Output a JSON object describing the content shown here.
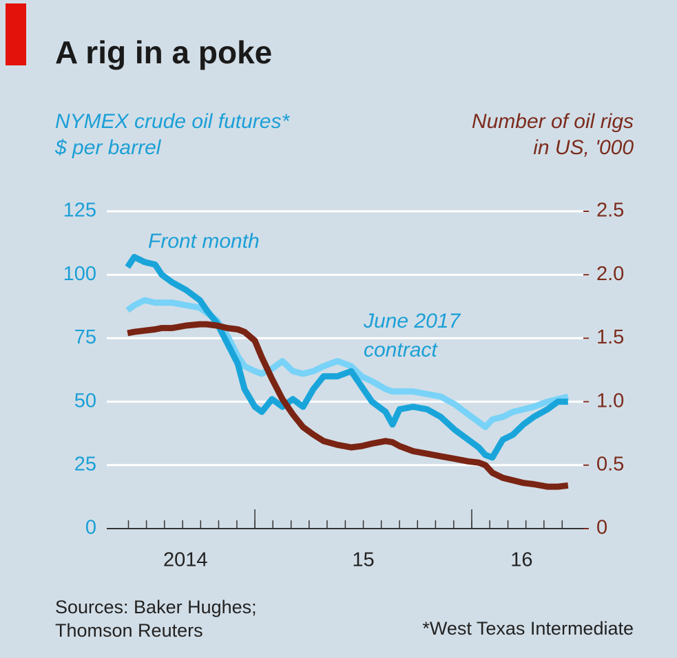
{
  "chart_data": {
    "type": "line",
    "title": "A rig in a poke",
    "y_axis_label": [
      "NYMEX crude oil futures*",
      "$ per barrel"
    ],
    "y2_axis_label": [
      "Number of oil rigs",
      "in US, '000"
    ],
    "annotations": [
      "Front month",
      "June 2017",
      "contract"
    ],
    "sources": [
      "Sources: Baker Hughes;",
      "Thomson Reuters"
    ],
    "footnote": "*West Texas Intermediate",
    "x": [
      2014.413,
      2014.444,
      2014.492,
      2014.54,
      2014.571,
      2014.619,
      2014.683,
      2014.746,
      2014.778,
      2014.825,
      2014.873,
      2014.921,
      2014.952,
      2015.0,
      2015.032,
      2015.079,
      2015.127,
      2015.175,
      2015.222,
      2015.27,
      2015.317,
      2015.381,
      2015.444,
      2015.492,
      2015.54,
      2015.603,
      2015.635,
      2015.667,
      2015.73,
      2015.794,
      2015.857,
      2015.921,
      2015.984,
      2016.032,
      2016.063,
      2016.095,
      2016.143,
      2016.19,
      2016.238,
      2016.286,
      2016.349,
      2016.397,
      2016.444
    ],
    "series": [
      {
        "name": "June 2017 contract",
        "color": "#79d2f7",
        "axis": "y",
        "values": [
          86,
          88,
          90,
          89,
          89,
          89,
          88,
          87,
          85,
          82,
          76,
          68,
          64,
          62,
          61,
          63,
          66,
          62,
          61,
          62,
          64,
          66,
          64,
          60,
          58,
          55,
          54,
          54,
          54,
          53,
          52,
          49,
          45,
          42,
          40,
          43,
          44,
          46,
          47,
          48,
          50,
          51,
          52
        ]
      },
      {
        "name": "Front month",
        "color": "#1aa5da",
        "axis": "y",
        "values": [
          103,
          107,
          105,
          104,
          100,
          97,
          94,
          90,
          86,
          81,
          73,
          65,
          55,
          48,
          46,
          51,
          48,
          51,
          48,
          55,
          60,
          60,
          62,
          56,
          50,
          46,
          41,
          47,
          48,
          47,
          44,
          39,
          35,
          32,
          29,
          28,
          35,
          37,
          41,
          44,
          47,
          50,
          50
        ]
      },
      {
        "name": "Number of oil rigs",
        "color": "#7a2414",
        "axis": "y2",
        "values": [
          1.54,
          1.55,
          1.56,
          1.57,
          1.58,
          1.58,
          1.6,
          1.61,
          1.61,
          1.6,
          1.58,
          1.57,
          1.55,
          1.48,
          1.35,
          1.18,
          1.02,
          0.9,
          0.8,
          0.74,
          0.69,
          0.66,
          0.64,
          0.65,
          0.67,
          0.69,
          0.68,
          0.65,
          0.61,
          0.59,
          0.57,
          0.55,
          0.53,
          0.52,
          0.5,
          0.44,
          0.4,
          0.38,
          0.36,
          0.35,
          0.33,
          0.33,
          0.34
        ]
      }
    ],
    "xlim": [
      2014.317,
      2016.54
    ],
    "xticks": [
      2014.417,
      2014.5,
      2014.583,
      2014.667,
      2014.75,
      2014.833,
      2014.917,
      2015,
      2015.083,
      2015.167,
      2015.25,
      2015.333,
      2015.417,
      2015.5,
      2015.583,
      2015.667,
      2015.75,
      2015.833,
      2015.917,
      2016,
      2016.083,
      2016.167,
      2016.25,
      2016.333,
      2016.417
    ],
    "major_xticks": [
      2015,
      2016
    ],
    "year_labels": [
      {
        "value": 2014.68,
        "label": "2014"
      },
      {
        "value": 2015.5,
        "label": "15"
      },
      {
        "value": 2016.23,
        "label": "16"
      }
    ],
    "ylim": [
      0,
      125
    ],
    "yticks": [
      0,
      25,
      50,
      75,
      100,
      125
    ],
    "y2lim": [
      0,
      2.5
    ],
    "y2ticks": [
      0,
      0.5,
      {
        "value": 1.0,
        "label": "1.0"
      },
      1.5,
      {
        "value": 2.0,
        "label": "2.0"
      },
      2.5
    ],
    "grid": true,
    "y_color": "#1b9fd6",
    "y2_color": "#7b2b1c"
  }
}
